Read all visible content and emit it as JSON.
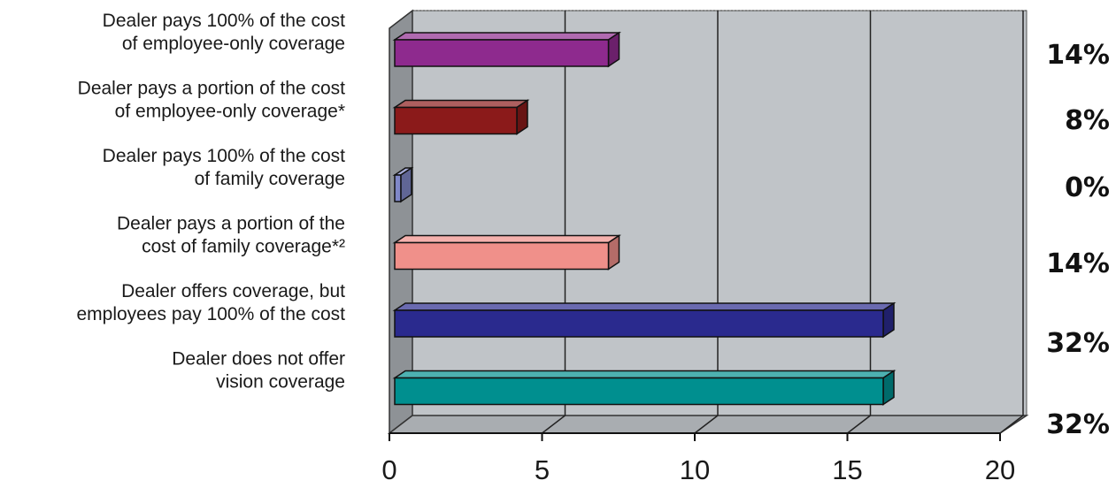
{
  "chart_data": {
    "type": "bar",
    "orientation": "horizontal",
    "categories": [
      [
        "Dealer pays 100% of the cost",
        "of employee-only coverage"
      ],
      [
        "Dealer pays a portion of the cost",
        "of employee-only coverage*"
      ],
      [
        "Dealer pays 100% of the cost",
        "of family coverage"
      ],
      [
        "Dealer pays a portion of the",
        "cost of family coverage*²"
      ],
      [
        "Dealer offers coverage, but",
        "employees pay 100% of the cost"
      ],
      [
        "Dealer does not offer",
        "vision coverage"
      ]
    ],
    "values": [
      7,
      4,
      0.2,
      7,
      16,
      16
    ],
    "percent_labels": [
      "14%",
      "8%",
      "0%",
      "14%",
      "32%",
      "32%"
    ],
    "colors": [
      "#8e2a8e",
      "#8b1a1a",
      "#8088c8",
      "#f0908a",
      "#2a2a8e",
      "#008f8f"
    ],
    "xticks": [
      "0",
      "5",
      "10",
      "15",
      "20"
    ],
    "xlim": [
      0,
      20
    ],
    "grid": true,
    "background": "#c0c4c8",
    "title": "",
    "xlabel": "",
    "ylabel": ""
  }
}
